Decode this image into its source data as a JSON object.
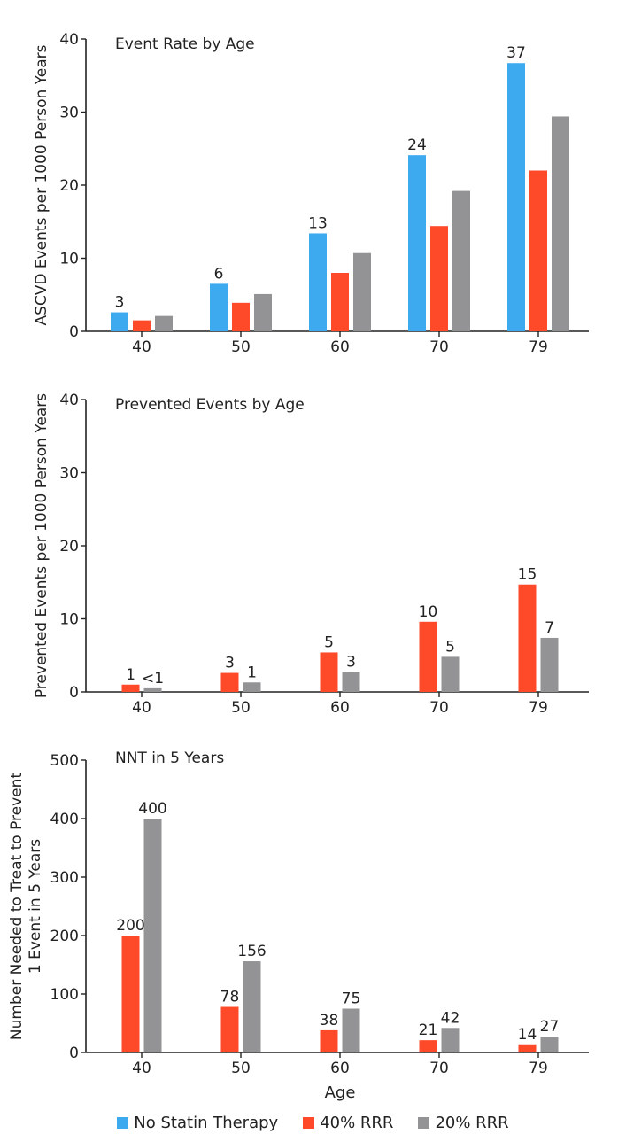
{
  "legend": [
    {
      "name": "No Statin Therapy",
      "color": "#3daaf0"
    },
    {
      "name": "40% RRR",
      "color": "#ff4a2a"
    },
    {
      "name": "20% RRR",
      "color": "#939396"
    }
  ],
  "xlabel": "Age",
  "chart_data": [
    {
      "type": "bar",
      "title": "Event Rate by Age",
      "ylabel": "ASCVD Events per 1000 Person Years",
      "ylim": [
        0,
        40
      ],
      "yticks": [
        0,
        10,
        20,
        30,
        40
      ],
      "categories": [
        "40",
        "50",
        "60",
        "70",
        "79"
      ],
      "series": [
        {
          "name": "No Statin Therapy",
          "color": "#3daaf0",
          "values": [
            2.6,
            6.5,
            13.4,
            24.1,
            36.7
          ],
          "labels": [
            "3",
            "6",
            "13",
            "24",
            "37"
          ]
        },
        {
          "name": "40% RRR",
          "color": "#ff4a2a",
          "values": [
            1.5,
            3.9,
            8.0,
            14.4,
            22.0
          ],
          "labels": [
            "",
            "",
            "",
            "",
            ""
          ]
        },
        {
          "name": "20% RRR",
          "color": "#939396",
          "values": [
            2.1,
            5.1,
            10.7,
            19.2,
            29.4
          ],
          "labels": [
            "",
            "",
            "",
            "",
            ""
          ]
        }
      ]
    },
    {
      "type": "bar",
      "title": "Prevented Events by Age",
      "ylabel": "Prevented Events per 1000 Person Years",
      "ylim": [
        0,
        40
      ],
      "yticks": [
        0,
        10,
        20,
        30,
        40
      ],
      "categories": [
        "40",
        "50",
        "60",
        "70",
        "79"
      ],
      "series": [
        {
          "name": "40% RRR",
          "color": "#ff4a2a",
          "values": [
            1.0,
            2.6,
            5.4,
            9.6,
            14.7
          ],
          "labels": [
            "1",
            "3",
            "5",
            "10",
            "15"
          ]
        },
        {
          "name": "20% RRR",
          "color": "#939396",
          "values": [
            0.5,
            1.3,
            2.7,
            4.8,
            7.4
          ],
          "labels": [
            "<1",
            "1",
            "3",
            "5",
            "7"
          ]
        }
      ]
    },
    {
      "type": "bar",
      "title": "NNT in 5 Years",
      "ylabel": [
        "Number Needed to Treat to Prevent",
        "1 Event in 5 Years"
      ],
      "xlabel": "Age",
      "ylim": [
        0,
        500
      ],
      "yticks": [
        0,
        100,
        200,
        300,
        400,
        500
      ],
      "categories": [
        "40",
        "50",
        "60",
        "70",
        "79"
      ],
      "series": [
        {
          "name": "40% RRR",
          "color": "#ff4a2a",
          "values": [
            200,
            78,
            38,
            21,
            14
          ],
          "labels": [
            "200",
            "78",
            "38",
            "21",
            "14"
          ]
        },
        {
          "name": "20% RRR",
          "color": "#939396",
          "values": [
            400,
            156,
            75,
            42,
            27
          ],
          "labels": [
            "400",
            "156",
            "75",
            "42",
            "27"
          ]
        }
      ]
    }
  ]
}
